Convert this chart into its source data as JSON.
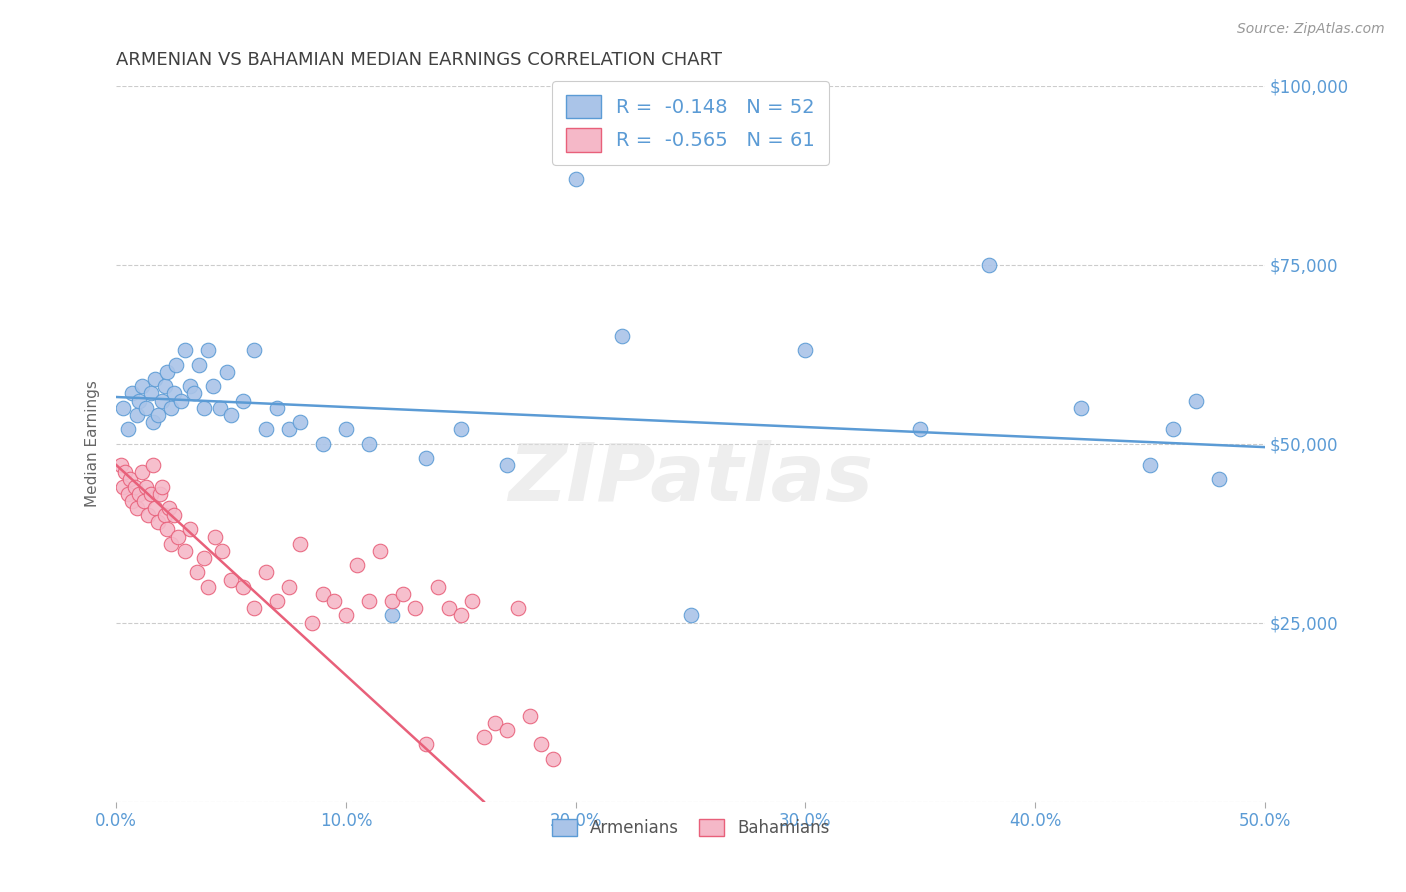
{
  "title": "ARMENIAN VS BAHAMIAN MEDIAN EARNINGS CORRELATION CHART",
  "source": "Source: ZipAtlas.com",
  "ylabel": "Median Earnings",
  "yticks": [
    0,
    25000,
    50000,
    75000,
    100000
  ],
  "ytick_labels": [
    "",
    "$25,000",
    "$50,000",
    "$75,000",
    "$100,000"
  ],
  "legend_armenians": "R =  -0.148   N = 52",
  "legend_bahamians": "R =  -0.565   N = 61",
  "armenian_color": "#aac4e8",
  "bahamian_color": "#f5b8c8",
  "armenian_line_color": "#5b9bd5",
  "bahamian_line_color": "#e8607a",
  "watermark": "ZIPatlas",
  "background_color": "#ffffff",
  "grid_color": "#cccccc",
  "title_color": "#404040",
  "axis_label_color": "#5b9bd5",
  "xlim": [
    0,
    50
  ],
  "ylim": [
    0,
    100000
  ],
  "xtick_positions": [
    0,
    10,
    20,
    30,
    40,
    50
  ],
  "xtick_labels": [
    "0.0%",
    "10.0%",
    "20.0%",
    "30.0%",
    "40.0%",
    "50.0%"
  ],
  "armenians_x": [
    0.3,
    0.5,
    0.7,
    0.9,
    1.0,
    1.1,
    1.3,
    1.5,
    1.6,
    1.7,
    1.8,
    2.0,
    2.1,
    2.2,
    2.4,
    2.5,
    2.6,
    2.8,
    3.0,
    3.2,
    3.4,
    3.6,
    3.8,
    4.0,
    4.2,
    4.5,
    4.8,
    5.0,
    5.5,
    6.0,
    6.5,
    7.0,
    7.5,
    8.0,
    9.0,
    10.0,
    11.0,
    12.0,
    13.5,
    15.0,
    17.0,
    20.0,
    22.0,
    25.0,
    30.0,
    35.0,
    38.0,
    42.0,
    45.0,
    46.0,
    47.0,
    48.0
  ],
  "armenians_y": [
    55000,
    52000,
    57000,
    54000,
    56000,
    58000,
    55000,
    57000,
    53000,
    59000,
    54000,
    56000,
    58000,
    60000,
    55000,
    57000,
    61000,
    56000,
    63000,
    58000,
    57000,
    61000,
    55000,
    63000,
    58000,
    55000,
    60000,
    54000,
    56000,
    63000,
    52000,
    55000,
    52000,
    53000,
    50000,
    52000,
    50000,
    26000,
    48000,
    52000,
    47000,
    87000,
    65000,
    26000,
    63000,
    52000,
    75000,
    55000,
    47000,
    52000,
    56000,
    45000
  ],
  "bahamians_x": [
    0.2,
    0.3,
    0.4,
    0.5,
    0.6,
    0.7,
    0.8,
    0.9,
    1.0,
    1.1,
    1.2,
    1.3,
    1.4,
    1.5,
    1.6,
    1.7,
    1.8,
    1.9,
    2.0,
    2.1,
    2.2,
    2.3,
    2.4,
    2.5,
    2.7,
    3.0,
    3.2,
    3.5,
    3.8,
    4.0,
    4.3,
    4.6,
    5.0,
    5.5,
    6.0,
    6.5,
    7.0,
    7.5,
    8.0,
    8.5,
    9.0,
    9.5,
    10.0,
    10.5,
    11.0,
    11.5,
    12.0,
    12.5,
    13.0,
    13.5,
    14.0,
    14.5,
    15.0,
    15.5,
    16.0,
    16.5,
    17.0,
    17.5,
    18.0,
    18.5,
    19.0
  ],
  "bahamians_y": [
    47000,
    44000,
    46000,
    43000,
    45000,
    42000,
    44000,
    41000,
    43000,
    46000,
    42000,
    44000,
    40000,
    43000,
    47000,
    41000,
    39000,
    43000,
    44000,
    40000,
    38000,
    41000,
    36000,
    40000,
    37000,
    35000,
    38000,
    32000,
    34000,
    30000,
    37000,
    35000,
    31000,
    30000,
    27000,
    32000,
    28000,
    30000,
    36000,
    25000,
    29000,
    28000,
    26000,
    33000,
    28000,
    35000,
    28000,
    29000,
    27000,
    8000,
    30000,
    27000,
    26000,
    28000,
    9000,
    11000,
    10000,
    27000,
    12000,
    8000,
    6000
  ]
}
